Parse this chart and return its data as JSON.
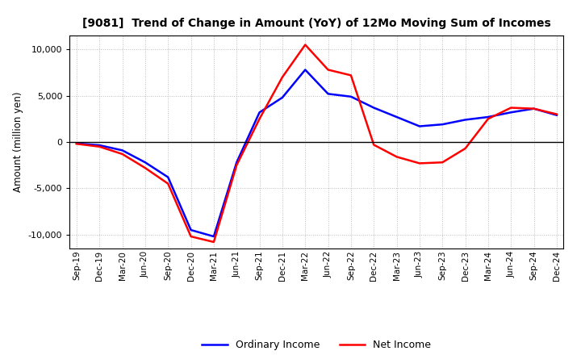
{
  "title": "[9081]  Trend of Change in Amount (YoY) of 12Mo Moving Sum of Incomes",
  "ylabel": "Amount (million yen)",
  "ylim": [
    -11500,
    11500
  ],
  "yticks": [
    -10000,
    -5000,
    0,
    5000,
    10000
  ],
  "background_color": "#ffffff",
  "grid_color": "#bbbbbb",
  "ordinary_income_color": "#0000ff",
  "net_income_color": "#ff0000",
  "legend_ordinary": "Ordinary Income",
  "legend_net": "Net Income",
  "x_labels": [
    "Sep-19",
    "Dec-19",
    "Mar-20",
    "Jun-20",
    "Sep-20",
    "Dec-20",
    "Mar-21",
    "Jun-21",
    "Sep-21",
    "Dec-21",
    "Mar-22",
    "Jun-22",
    "Sep-22",
    "Dec-22",
    "Mar-23",
    "Jun-23",
    "Sep-23",
    "Dec-23",
    "Mar-24",
    "Jun-24",
    "Sep-24",
    "Dec-24"
  ],
  "ordinary_income": [
    -150,
    -350,
    -900,
    -2200,
    -3800,
    -9500,
    -10200,
    -2200,
    3200,
    4800,
    7800,
    5200,
    4900,
    3700,
    2700,
    1700,
    1900,
    2400,
    2700,
    3200,
    3600,
    2900
  ],
  "net_income": [
    -200,
    -500,
    -1300,
    -2800,
    -4500,
    -10200,
    -10800,
    -2500,
    2500,
    7000,
    10500,
    7800,
    7200,
    -300,
    -1600,
    -2300,
    -2200,
    -700,
    2500,
    3700,
    3600,
    3000
  ]
}
